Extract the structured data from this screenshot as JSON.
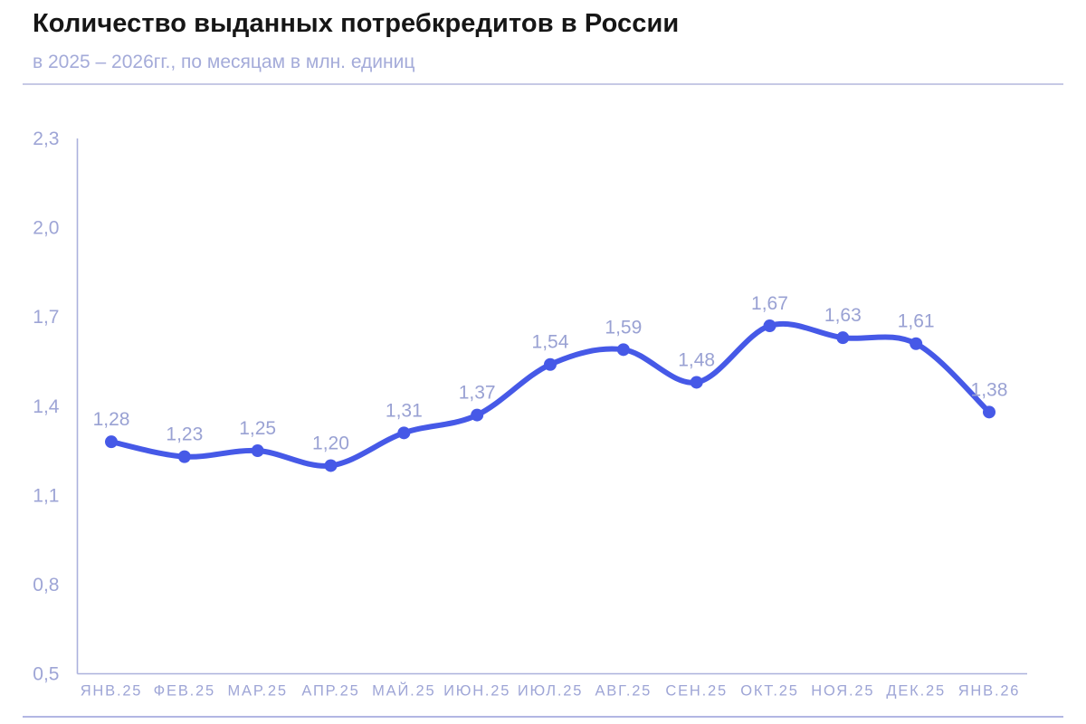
{
  "chart_data": {
    "type": "line",
    "title": "Количество выданных потребкредитов в России",
    "subtitle": "в 2025 – 2026гг., по месяцам в млн. единиц",
    "categories": [
      "ЯНВ.25",
      "ФЕВ.25",
      "МАР.25",
      "АПР.25",
      "МАЙ.25",
      "ИЮН.25",
      "ИЮЛ.25",
      "АВГ.25",
      "СЕН.25",
      "ОКТ.25",
      "НОЯ.25",
      "ДЕК.25",
      "ЯНВ.26"
    ],
    "values": [
      1.28,
      1.23,
      1.25,
      1.2,
      1.31,
      1.37,
      1.54,
      1.59,
      1.48,
      1.67,
      1.63,
      1.61,
      1.38
    ],
    "point_labels": [
      "1,28",
      "1,23",
      "1,25",
      "1,20",
      "1,31",
      "1,37",
      "1,54",
      "1,59",
      "1,48",
      "1,67",
      "1,63",
      "1,61",
      "1,38"
    ],
    "y_ticks": [
      {
        "value": 0.5,
        "label": "0,5"
      },
      {
        "value": 0.8,
        "label": "0,8"
      },
      {
        "value": 1.1,
        "label": "1,1"
      },
      {
        "value": 1.4,
        "label": "1,4"
      },
      {
        "value": 1.7,
        "label": "1,7"
      },
      {
        "value": 2.0,
        "label": "2,0"
      },
      {
        "value": 2.3,
        "label": "2,3"
      }
    ],
    "ylim": [
      0.5,
      2.3
    ],
    "xlabel": "",
    "ylabel": "",
    "grid": false,
    "legend": false,
    "colors": {
      "line": "#4659e7",
      "point": "#4659e7",
      "tick_label": "#9ea5d6",
      "value_label": "#99a1d3",
      "axis": "#abb1dd",
      "title": "#161616",
      "subtitle": "#a4abd9",
      "rule_top": "#c6c9e5",
      "rule_bottom": "#b2b7e3"
    }
  }
}
